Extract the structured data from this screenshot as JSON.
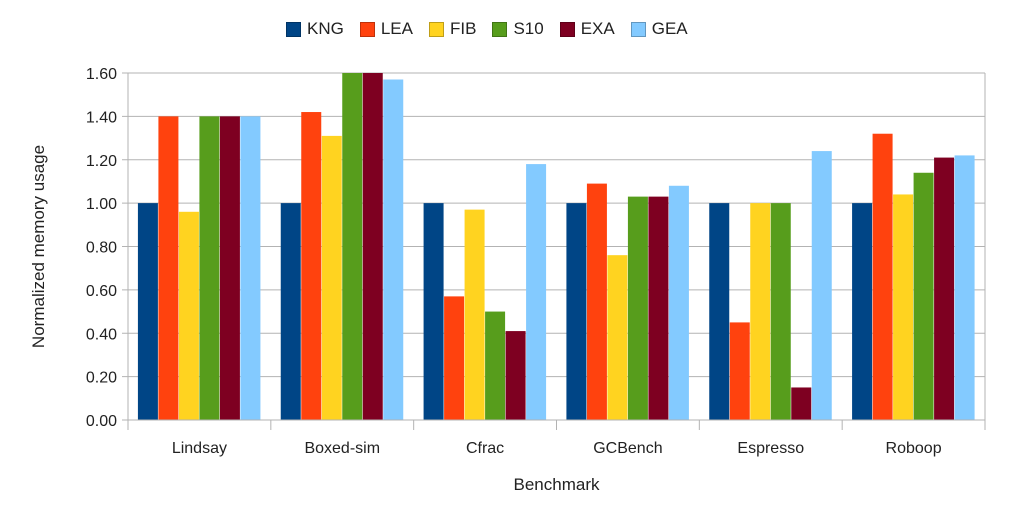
{
  "chart_data": {
    "type": "bar",
    "title": "",
    "xlabel": "Benchmark",
    "ylabel": "Normalized memory usage",
    "ylim": [
      0,
      1.6
    ],
    "yticks": [
      "0.00",
      "0.20",
      "0.40",
      "0.60",
      "0.80",
      "1.00",
      "1.20",
      "1.40",
      "1.60"
    ],
    "grid": true,
    "legend_position": "top-center",
    "categories": [
      "Lindsay",
      "Boxed-sim",
      "Cfrac",
      "GCBench",
      "Espresso",
      "Roboop"
    ],
    "series": [
      {
        "name": "KNG",
        "color": "#004586",
        "values": [
          1.0,
          1.0,
          1.0,
          1.0,
          1.0,
          1.0
        ]
      },
      {
        "name": "LEA",
        "color": "#ff420e",
        "values": [
          1.4,
          1.42,
          0.57,
          1.09,
          0.45,
          1.32
        ]
      },
      {
        "name": "FIB",
        "color": "#ffd320",
        "values": [
          0.96,
          1.31,
          0.97,
          0.76,
          1.0,
          1.04
        ]
      },
      {
        "name": "S10",
        "color": "#579d1c",
        "values": [
          1.4,
          1.6,
          0.5,
          1.03,
          1.0,
          1.14
        ]
      },
      {
        "name": "EXA",
        "color": "#7e0021",
        "values": [
          1.4,
          1.6,
          0.41,
          1.03,
          0.15,
          1.21
        ]
      },
      {
        "name": "GEA",
        "color": "#83caff",
        "values": [
          1.4,
          1.57,
          1.18,
          1.08,
          1.24,
          1.22
        ]
      }
    ]
  }
}
